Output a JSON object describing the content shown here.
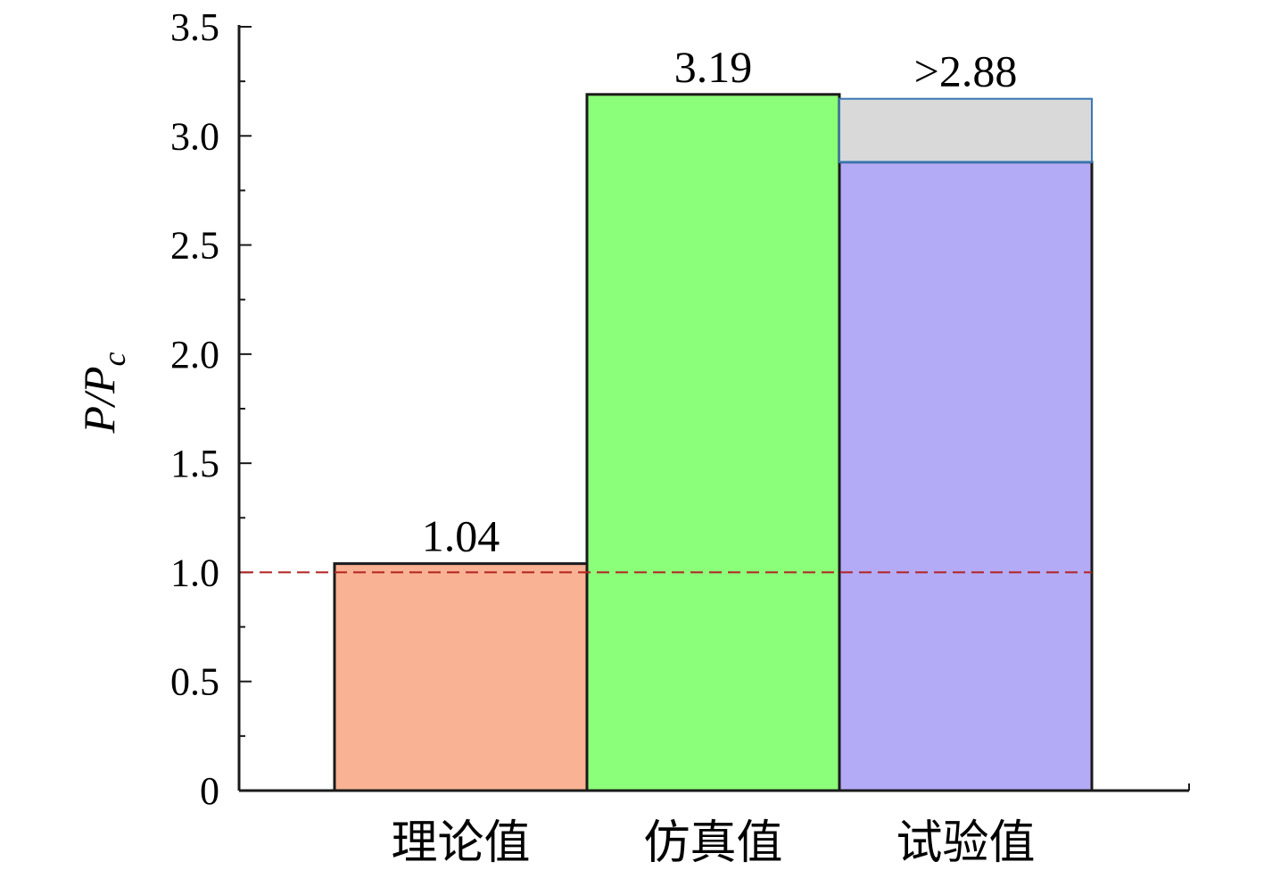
{
  "chart_data": {
    "type": "bar",
    "title": "",
    "xlabel": "",
    "ylabel": "P/P",
    "ylabel_subscript": "c",
    "ylim": [
      0,
      3.5
    ],
    "yticks": [
      "0",
      "0.5",
      "1.0",
      "1.5",
      "2.0",
      "2.5",
      "3.0",
      "3.5"
    ],
    "categories": [
      "理论值",
      "仿真值",
      "试验值"
    ],
    "values": [
      1.04,
      3.19,
      2.88
    ],
    "data_labels": [
      "1.04",
      "3.19",
      ">2.88"
    ],
    "bar_colors": [
      "#f9b293",
      "#8cff7a",
      "#b4abf6"
    ],
    "extension": {
      "category": "试验值",
      "from": 2.88,
      "to": 3.17,
      "color": "#d9d9d9"
    },
    "reference_line": {
      "y": 1.0,
      "style": "dashed",
      "color": "#b22222"
    },
    "grid": false,
    "legend": "none"
  }
}
